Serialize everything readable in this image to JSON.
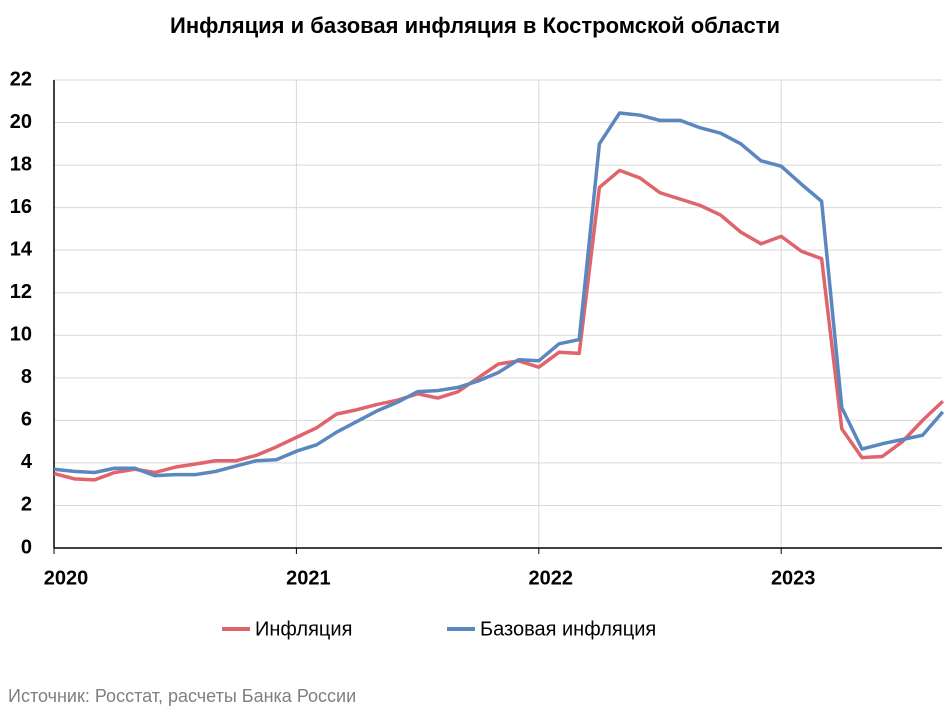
{
  "chart_data": {
    "type": "line",
    "title": "Инфляция и базовая инфляция в Костромской области",
    "source": "Источник: Росстат, расчеты Банка России",
    "categories": [
      "2020",
      null,
      null,
      null,
      null,
      null,
      null,
      null,
      null,
      null,
      null,
      null,
      "2021",
      null,
      null,
      null,
      null,
      null,
      null,
      null,
      null,
      null,
      null,
      null,
      "2022",
      null,
      null,
      null,
      null,
      null,
      null,
      null,
      null,
      null,
      null,
      null,
      "2023",
      null,
      null,
      null,
      null,
      null,
      null,
      null,
      null
    ],
    "series": [
      {
        "name": "Инфляция",
        "color": "#e0646c",
        "values": [
          3.5,
          3.25,
          3.2,
          3.55,
          3.7,
          3.55,
          3.8,
          3.95,
          4.1,
          4.1,
          4.35,
          4.75,
          5.2,
          5.65,
          6.3,
          6.5,
          6.75,
          6.95,
          7.25,
          7.05,
          7.35,
          8.0,
          8.65,
          8.8,
          8.5,
          9.2,
          9.15,
          16.95,
          17.75,
          17.4,
          16.7,
          16.4,
          16.1,
          15.65,
          14.85,
          14.3,
          14.65,
          13.95,
          13.6,
          5.6,
          4.25,
          4.3,
          5.0,
          6.0,
          6.9
        ]
      },
      {
        "name": "Базовая инфляция",
        "color": "#5b87bf",
        "values": [
          3.7,
          3.6,
          3.55,
          3.75,
          3.75,
          3.4,
          3.45,
          3.45,
          3.6,
          3.85,
          4.1,
          4.15,
          4.55,
          4.85,
          5.45,
          5.95,
          6.45,
          6.85,
          7.35,
          7.4,
          7.55,
          7.85,
          8.25,
          8.85,
          8.8,
          9.6,
          9.8,
          19.0,
          20.45,
          20.35,
          20.1,
          20.1,
          19.75,
          19.5,
          19.0,
          18.2,
          17.95,
          17.1,
          16.3,
          6.6,
          4.65,
          4.9,
          5.1,
          5.3,
          6.4
        ]
      }
    ],
    "ylim": [
      0,
      22
    ],
    "yticks": [
      0,
      2,
      4,
      6,
      8,
      10,
      12,
      14,
      16,
      18,
      20,
      22
    ],
    "grid": true
  }
}
